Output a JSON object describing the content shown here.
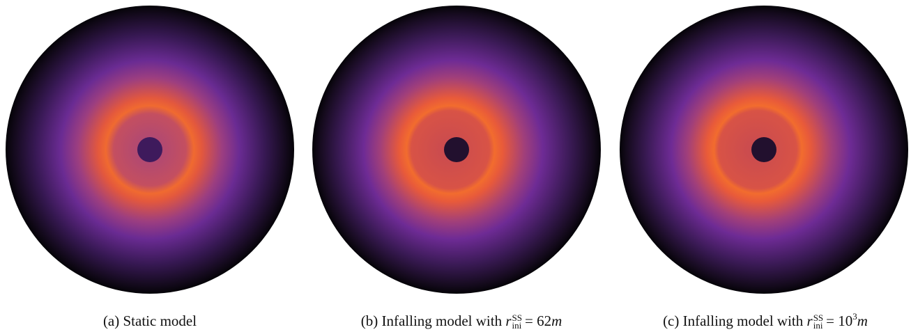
{
  "panels": [
    {
      "caption": {
        "text": "(a) Static model"
      }
    },
    {
      "caption": {
        "text": "(b) Infalling model with",
        "symbol": "r",
        "superscript": "SS",
        "subscript": "ini",
        "equation": "= 62",
        "unit": "m"
      }
    },
    {
      "caption": {
        "text": "(c) Infalling model with",
        "symbol": "r",
        "superscript": "SS",
        "subscript": "ini",
        "equation": "= 10",
        "exponent": "3",
        "unit": "m"
      }
    }
  ]
}
